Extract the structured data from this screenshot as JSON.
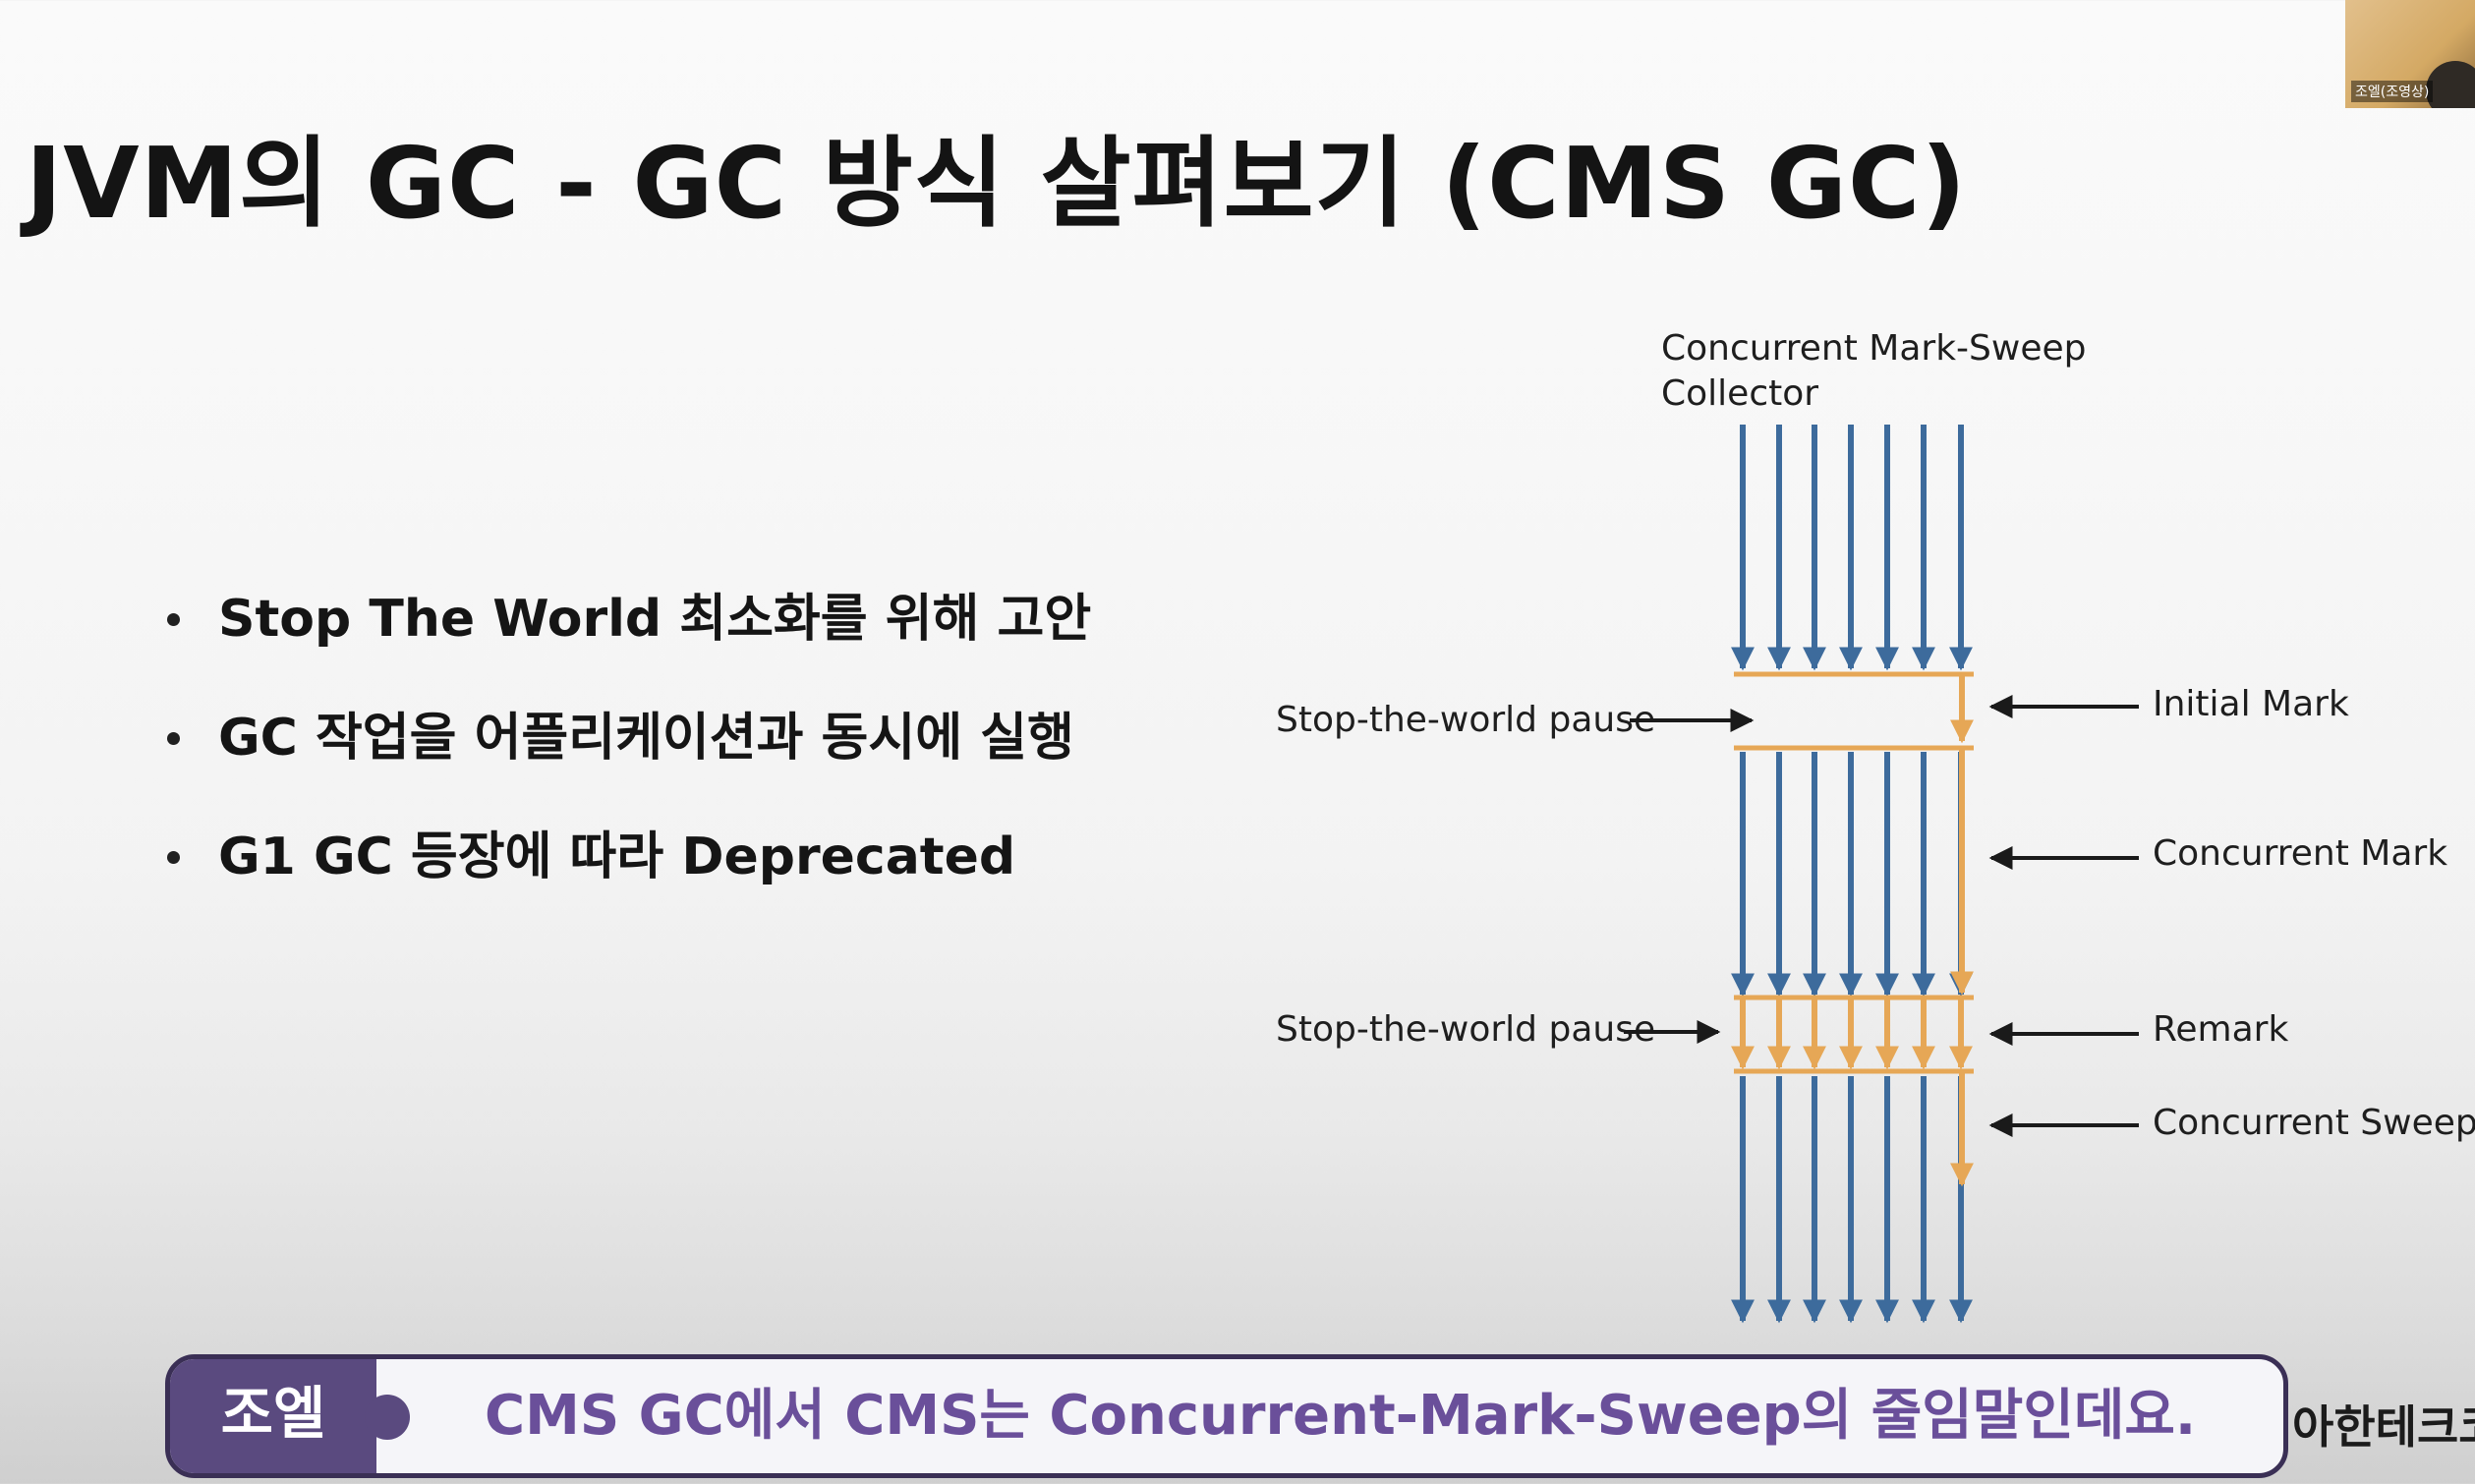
{
  "slide": {
    "title": "JVM의 GC - GC 방식 살펴보기 (CMS GC)",
    "bullets": [
      "Stop The World 최소화를 위해 고안",
      "GC 작업을 어플리케이션과 동시에 실행",
      "G1 GC 등장에 따라 Deprecated"
    ]
  },
  "diagram": {
    "title_line1": "Concurrent Mark-Sweep",
    "title_line2": "Collector",
    "pause_label_1": "Stop-the-world pause",
    "pause_label_2": "Stop-the-world pause",
    "phases": [
      "Initial Mark",
      "Concurrent Mark",
      "Remark",
      "Concurrent Sweep"
    ],
    "colors": {
      "app_thread": "#3d6b9c",
      "gc_thread": "#e6a756",
      "label_arrow": "#1a1a1a"
    }
  },
  "caption": {
    "speaker": "조엘",
    "text": "CMS GC에서 CMS는 Concurrent-Mark-Sweep의 줄임말인데요."
  },
  "channel_text": "아한테크코",
  "camera": {
    "label": "조엘(조영상)"
  }
}
